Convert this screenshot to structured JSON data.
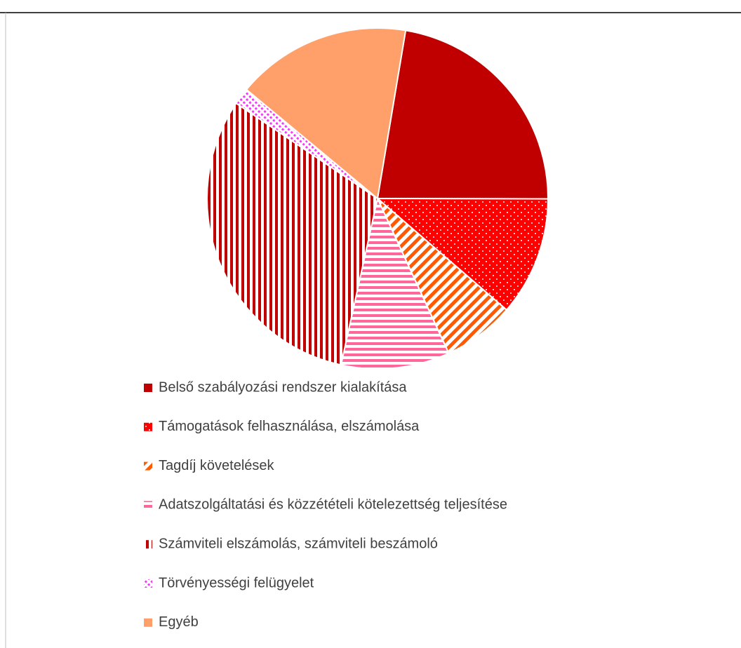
{
  "chart_data": {
    "type": "pie",
    "categories": [
      "Belső szabályozási rendszer kialakítása",
      "Támogatások felhasználása, elszámolása",
      "Tagdíj követelések",
      "Adatszolgáltatási és közzétételi kötelezettség teljesítése",
      "Számviteli elszámolás, számviteli beszámoló",
      "Törvényességi felügyelet",
      "Egyéb"
    ],
    "values": [
      22.4,
      11.3,
      6.8,
      10.3,
      31,
      1.6,
      16.6
    ],
    "colors": [
      "#c00000",
      "#ff0000",
      "#ff5a00",
      "#ff6699",
      "#c00000",
      "#ff33ff",
      "#ffa06a"
    ],
    "patterns": [
      "solid",
      "dots",
      "diagonal",
      "horizontal",
      "vertical",
      "diagonal-dots",
      "solid"
    ],
    "legend": "bottom"
  }
}
